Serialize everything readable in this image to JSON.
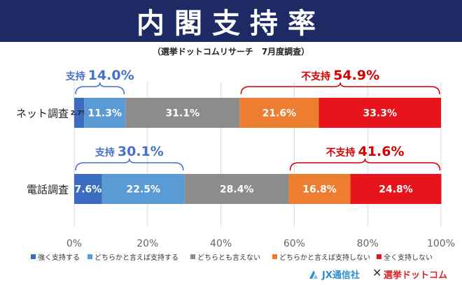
{
  "title": "内閣支持率",
  "subtitle": "（選挙ドットコムリサーチ　7月度調査）",
  "colors": {
    "banner": "#1d2a63",
    "strong_support": "#3b6cc0",
    "somewhat_support": "#5b9bd5",
    "neither": "#8c8c8c",
    "somewhat_not": "#ed7d31",
    "not_at_all": "#e8141b",
    "support_bracket": "#4472c4",
    "nonsupport_bracket": "#d40000"
  },
  "chart_data": {
    "type": "bar",
    "orientation": "horizontal",
    "stacked": true,
    "categories": [
      "ネット調査",
      "電話調査"
    ],
    "series": [
      {
        "name": "強く支持する",
        "values": [
          2.7,
          7.6
        ]
      },
      {
        "name": "どちらかと言えば支持する",
        "values": [
          11.3,
          22.5
        ]
      },
      {
        "name": "どちらとも言えない",
        "values": [
          31.1,
          28.4
        ]
      },
      {
        "name": "どちらかと言えば支持しない",
        "values": [
          21.6,
          16.8
        ]
      },
      {
        "name": "全く支持しない",
        "values": [
          33.3,
          24.8
        ]
      }
    ],
    "value_labels": [
      [
        "2.7%",
        "11.3%",
        "31.1%",
        "21.6%",
        "33.3%"
      ],
      [
        "7.6%",
        "22.5%",
        "28.4%",
        "16.8%",
        "24.8%"
      ]
    ],
    "xlim": [
      0,
      100
    ],
    "x_ticks": [
      "0%",
      "20%",
      "40%",
      "60%",
      "80%",
      "100%"
    ],
    "grid": true,
    "legend_position": "bottom",
    "annotations": [
      {
        "row": 0,
        "label": "支持",
        "value": "14.0%",
        "from_series": 0,
        "to_series": 1,
        "kind": "support"
      },
      {
        "row": 0,
        "label": "不支持",
        "value": "54.9%",
        "from_series": 3,
        "to_series": 4,
        "kind": "nonsupport"
      },
      {
        "row": 1,
        "label": "支持",
        "value": "30.1%",
        "from_series": 0,
        "to_series": 1,
        "kind": "support"
      },
      {
        "row": 1,
        "label": "不支持",
        "value": "41.6%",
        "from_series": 3,
        "to_series": 4,
        "kind": "nonsupport"
      }
    ]
  },
  "footer": {
    "jx": "JX通信社",
    "times": "✕",
    "senkyo": "選挙ドットコム"
  }
}
